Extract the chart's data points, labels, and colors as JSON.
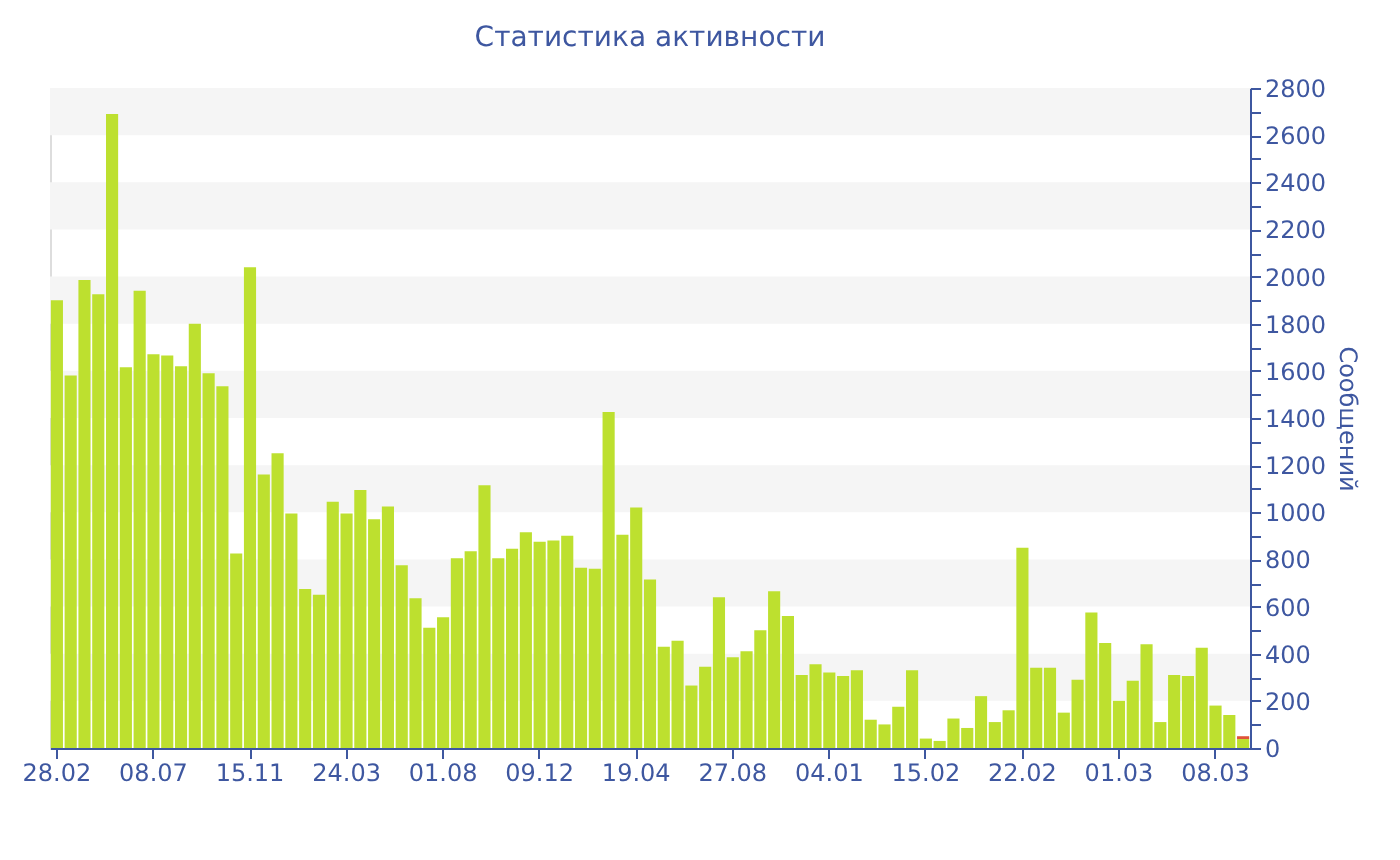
{
  "chart_data": {
    "type": "bar",
    "title": "Статистика активности",
    "ylabel": "Сообщений",
    "categories": [
      "28.02",
      null,
      null,
      null,
      null,
      null,
      null,
      "08.07",
      null,
      null,
      null,
      null,
      null,
      null,
      "15.11",
      null,
      null,
      null,
      null,
      null,
      null,
      "24.03",
      null,
      null,
      null,
      null,
      null,
      null,
      "01.08",
      null,
      null,
      null,
      null,
      null,
      null,
      "09.12",
      null,
      null,
      null,
      null,
      null,
      null,
      "19.04",
      null,
      null,
      null,
      null,
      null,
      null,
      "27.08",
      null,
      null,
      null,
      null,
      null,
      null,
      "04.01",
      null,
      null,
      null,
      null,
      null,
      null,
      "15.02",
      null,
      null,
      null,
      null,
      null,
      null,
      "22.02",
      null,
      null,
      null,
      null,
      null,
      null,
      "01.03",
      null,
      null,
      null,
      null,
      null,
      null,
      "08.03",
      null,
      null
    ],
    "stacked": true,
    "series": [
      {
        "color": "#bde02f",
        "values": [
          1900,
          1580,
          1985,
          1925,
          2690,
          1615,
          1940,
          1670,
          1665,
          1620,
          1800,
          1590,
          1535,
          825,
          2040,
          1160,
          1250,
          995,
          675,
          650,
          1045,
          995,
          1095,
          970,
          1025,
          775,
          635,
          510,
          555,
          805,
          835,
          1115,
          805,
          845,
          915,
          875,
          880,
          900,
          765,
          760,
          1425,
          905,
          1020,
          715,
          430,
          455,
          265,
          345,
          640,
          385,
          410,
          500,
          665,
          560,
          310,
          355,
          320,
          305,
          330,
          120,
          100,
          175,
          330,
          40,
          30,
          125,
          85,
          220,
          110,
          160,
          850,
          340,
          340,
          150,
          290,
          575,
          445,
          200,
          285,
          440,
          110,
          310,
          305,
          425,
          180,
          140,
          38
        ]
      },
      {
        "color": "#e0533a",
        "values": [
          null,
          null,
          null,
          null,
          null,
          null,
          null,
          null,
          null,
          null,
          null,
          null,
          null,
          null,
          null,
          null,
          null,
          null,
          null,
          null,
          null,
          null,
          null,
          null,
          null,
          null,
          null,
          null,
          null,
          null,
          null,
          null,
          null,
          null,
          null,
          null,
          null,
          null,
          null,
          null,
          null,
          null,
          null,
          null,
          null,
          null,
          null,
          null,
          null,
          null,
          null,
          null,
          null,
          null,
          null,
          null,
          null,
          null,
          null,
          null,
          null,
          null,
          null,
          null,
          null,
          null,
          null,
          null,
          null,
          null,
          null,
          null,
          null,
          null,
          null,
          null,
          null,
          null,
          null,
          null,
          null,
          null,
          null,
          null,
          null,
          null,
          12
        ]
      }
    ],
    "ylim": [
      0,
      2800
    ],
    "yticks": [
      0,
      {
        "value": 100,
        "label": null
      },
      200,
      {
        "value": 300,
        "label": null
      },
      400,
      {
        "value": 500,
        "label": null
      },
      600,
      {
        "value": 700,
        "label": null
      },
      800,
      {
        "value": 900,
        "label": null
      },
      1000,
      {
        "value": 1100,
        "label": null
      },
      1200,
      {
        "value": 1300,
        "label": null
      },
      1400,
      {
        "value": 1500,
        "label": null
      },
      1600,
      {
        "value": 1700,
        "label": null
      },
      1800,
      {
        "value": 1900,
        "label": null
      },
      2000,
      {
        "value": 2100,
        "label": null
      },
      2200,
      {
        "value": 2300,
        "label": null
      },
      2400,
      {
        "value": 2500,
        "label": null
      },
      2600,
      {
        "value": 2700,
        "label": null
      },
      2800
    ],
    "bands": [
      {
        "axis": "y",
        "from": 200,
        "to": 400,
        "color": "#f5f5f5"
      },
      {
        "axis": "y",
        "from": 600,
        "to": 800,
        "color": "#f5f5f5"
      },
      {
        "axis": "y",
        "from": 1000,
        "to": 1200,
        "color": "#f5f5f5"
      },
      {
        "axis": "y",
        "from": 1400,
        "to": 1600,
        "color": "#f5f5f5"
      },
      {
        "axis": "y",
        "from": 1800,
        "to": 2000,
        "color": "#f5f5f5"
      },
      {
        "axis": "y",
        "from": 2200,
        "to": 2400,
        "color": "#f5f5f5"
      },
      {
        "axis": "y",
        "from": 2600,
        "to": 2800,
        "color": "#f5f5f5"
      }
    ]
  }
}
